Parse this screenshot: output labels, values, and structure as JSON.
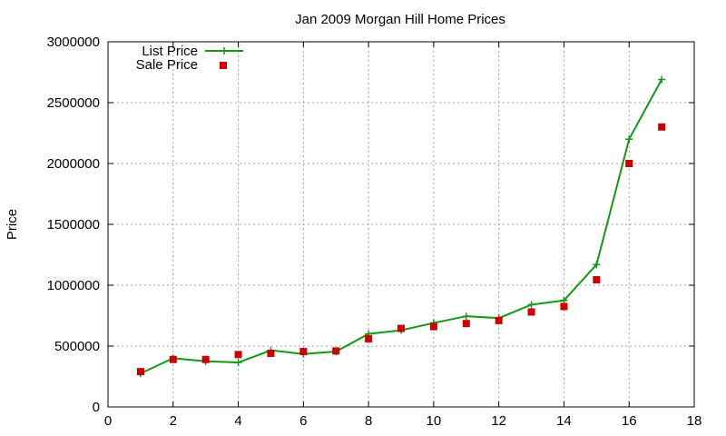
{
  "chart_data": {
    "type": "line",
    "title": "Jan 2009 Morgan Hill Home Prices",
    "xlabel": "",
    "ylabel": "Price",
    "xlim": [
      0,
      18
    ],
    "ylim": [
      0,
      3000000
    ],
    "xticks": [
      0,
      2,
      4,
      6,
      8,
      10,
      12,
      14,
      16,
      18
    ],
    "yticks": [
      0,
      500000,
      1000000,
      1500000,
      2000000,
      2500000,
      3000000
    ],
    "grid": true,
    "legend_position": "top-left",
    "series": [
      {
        "name": "List Price",
        "style": "line-with-plus-markers",
        "color": "#119911",
        "points": [
          [
            1,
            275000
          ],
          [
            2,
            400000
          ],
          [
            3,
            375000
          ],
          [
            4,
            365000
          ],
          [
            5,
            465000
          ],
          [
            6,
            435000
          ],
          [
            7,
            455000
          ],
          [
            8,
            600000
          ],
          [
            9,
            630000
          ],
          [
            10,
            690000
          ],
          [
            11,
            745000
          ],
          [
            12,
            730000
          ],
          [
            13,
            840000
          ],
          [
            14,
            875000
          ],
          [
            15,
            1170000
          ],
          [
            16,
            2200000
          ],
          [
            17,
            2690000
          ]
        ]
      },
      {
        "name": "Sale Price",
        "style": "square-markers",
        "color": "#cc0000",
        "points": [
          [
            1,
            290000
          ],
          [
            2,
            390000
          ],
          [
            3,
            390000
          ],
          [
            4,
            430000
          ],
          [
            5,
            440000
          ],
          [
            6,
            455000
          ],
          [
            7,
            460000
          ],
          [
            8,
            560000
          ],
          [
            9,
            645000
          ],
          [
            10,
            660000
          ],
          [
            11,
            685000
          ],
          [
            12,
            710000
          ],
          [
            13,
            780000
          ],
          [
            14,
            825000
          ],
          [
            15,
            1045000
          ],
          [
            16,
            2000000
          ],
          [
            17,
            2300000
          ]
        ]
      }
    ]
  }
}
